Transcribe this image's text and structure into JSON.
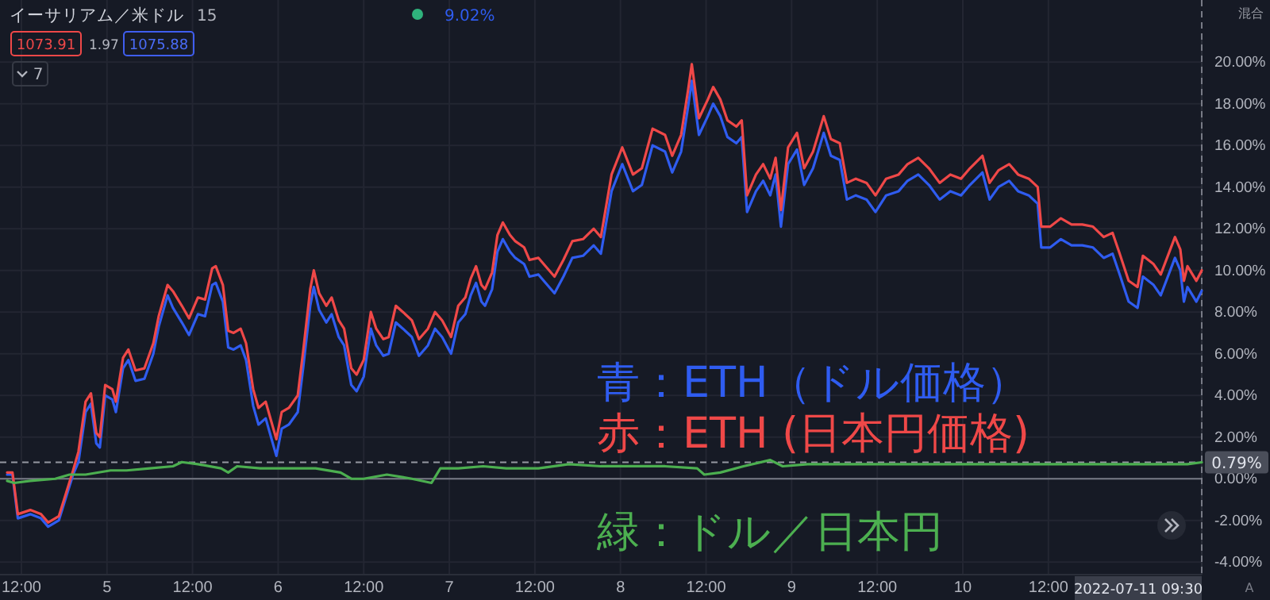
{
  "chart_data": {
    "type": "line",
    "title": "イーサリアム／米ドル",
    "annotations": [
      "15",
      "9.02%",
      "1073.91",
      "1.97",
      "1075.88",
      "7",
      "混合",
      "A"
    ],
    "x": [
      "2022-07-04T10:00",
      "2022-07-04T10:45",
      "2022-07-04T11:30",
      "2022-07-04T13:15",
      "2022-07-04T14:45",
      "2022-07-04T15:45",
      "2022-07-04T17:15",
      "2022-07-04T18:15",
      "2022-07-04T19:15",
      "2022-07-04T20:00",
      "2022-07-04T21:00",
      "2022-07-04T21:45",
      "2022-07-04T22:30",
      "2022-07-04T23:00",
      "2022-07-04T23:45",
      "2022-07-05T00:45",
      "2022-07-05T01:15",
      "2022-07-05T02:15",
      "2022-07-05T03:00",
      "2022-07-05T04:00",
      "2022-07-05T05:15",
      "2022-07-05T06:30",
      "2022-07-05T07:15",
      "2022-07-05T08:30",
      "2022-07-05T09:15",
      "2022-07-05T10:30",
      "2022-07-05T11:30",
      "2022-07-05T12:45",
      "2022-07-05T13:45",
      "2022-07-05T14:45",
      "2022-07-05T15:15",
      "2022-07-05T16:15",
      "2022-07-05T17:00",
      "2022-07-05T17:45",
      "2022-07-05T18:45",
      "2022-07-05T19:30",
      "2022-07-05T20:30",
      "2022-07-05T21:15",
      "2022-07-05T22:15",
      "2022-07-05T23:00",
      "2022-07-05T23:45",
      "2022-07-06T00:30",
      "2022-07-06T01:30",
      "2022-07-06T02:45",
      "2022-07-06T03:30",
      "2022-07-06T04:30",
      "2022-07-06T05:00",
      "2022-07-06T05:45",
      "2022-07-06T06:45",
      "2022-07-06T07:30",
      "2022-07-06T08:30",
      "2022-07-06T09:15",
      "2022-07-06T10:15",
      "2022-07-06T11:00",
      "2022-07-06T12:00",
      "2022-07-06T13:00",
      "2022-07-06T13:45",
      "2022-07-06T14:45",
      "2022-07-06T15:30",
      "2022-07-06T16:30",
      "2022-07-06T17:30",
      "2022-07-06T18:45",
      "2022-07-06T19:45",
      "2022-07-06T21:00",
      "2022-07-06T22:00",
      "2022-07-06T23:00",
      "2022-07-07T00:15",
      "2022-07-07T01:15",
      "2022-07-07T02:15",
      "2022-07-07T03:00",
      "2022-07-07T03:45",
      "2022-07-07T04:30",
      "2022-07-07T05:00",
      "2022-07-07T06:00",
      "2022-07-07T06:45",
      "2022-07-07T07:30",
      "2022-07-07T08:30",
      "2022-07-07T09:15",
      "2022-07-07T10:30",
      "2022-07-07T11:15",
      "2022-07-07T12:30",
      "2022-07-07T13:30",
      "2022-07-07T14:45",
      "2022-07-07T16:00",
      "2022-07-07T17:15",
      "2022-07-07T18:45",
      "2022-07-07T20:15",
      "2022-07-07T21:15",
      "2022-07-07T22:45",
      "2022-07-08T00:15",
      "2022-07-08T01:45",
      "2022-07-08T03:00",
      "2022-07-08T04:30",
      "2022-07-08T06:15",
      "2022-07-08T07:15",
      "2022-07-08T08:30",
      "2022-07-08T09:30",
      "2022-07-08T10:00",
      "2022-07-08T11:00",
      "2022-07-08T12:15",
      "2022-07-08T13:00",
      "2022-07-08T14:00",
      "2022-07-08T15:00",
      "2022-07-08T16:15",
      "2022-07-08T17:00",
      "2022-07-08T17:45",
      "2022-07-08T19:00",
      "2022-07-08T20:00",
      "2022-07-08T21:00",
      "2022-07-08T21:45",
      "2022-07-08T22:30",
      "2022-07-08T23:30",
      "2022-07-09T00:45",
      "2022-07-09T01:45",
      "2022-07-09T03:00",
      "2022-07-09T04:30",
      "2022-07-09T05:30",
      "2022-07-09T06:45",
      "2022-07-09T07:45",
      "2022-07-09T09:00",
      "2022-07-09T10:30",
      "2022-07-09T11:45",
      "2022-07-09T13:15",
      "2022-07-09T15:00",
      "2022-07-09T16:15",
      "2022-07-09T17:45",
      "2022-07-09T19:15",
      "2022-07-09T20:45",
      "2022-07-09T22:15",
      "2022-07-09T23:45",
      "2022-07-10T01:00",
      "2022-07-10T02:45",
      "2022-07-10T03:45",
      "2022-07-10T05:00",
      "2022-07-10T06:30",
      "2022-07-10T07:45",
      "2022-07-10T09:15",
      "2022-07-10T10:30",
      "2022-07-10T11:00",
      "2022-07-10T12:15",
      "2022-07-10T13:45",
      "2022-07-10T15:15",
      "2022-07-10T16:45",
      "2022-07-10T18:15",
      "2022-07-10T19:45",
      "2022-07-10T21:00",
      "2022-07-10T22:00",
      "2022-07-10T23:15",
      "2022-07-11T00:30",
      "2022-07-11T01:15",
      "2022-07-11T02:45",
      "2022-07-11T03:45",
      "2022-07-11T05:45",
      "2022-07-11T06:30",
      "2022-07-11T07:00",
      "2022-07-11T07:30",
      "2022-07-11T08:45",
      "2022-07-11T09:30"
    ],
    "series": [
      {
        "name": "青：ETH（ドル価格）",
        "color": "#2f5cf0",
        "values": [
          0.2,
          0.2,
          -1.9,
          -1.7,
          -1.9,
          -2.3,
          -2.0,
          -0.9,
          0.2,
          0.8,
          3.2,
          3.6,
          1.7,
          1.5,
          4.0,
          3.8,
          3.2,
          5.3,
          5.7,
          4.7,
          4.8,
          6.0,
          7.3,
          8.8,
          8.2,
          7.5,
          6.9,
          7.9,
          7.8,
          9.3,
          9.4,
          8.5,
          6.3,
          6.2,
          6.4,
          5.7,
          3.5,
          2.6,
          2.9,
          2.0,
          1.1,
          2.4,
          2.6,
          3.2,
          5.3,
          8.3,
          9.2,
          8.1,
          7.5,
          7.9,
          6.8,
          6.4,
          4.5,
          4.2,
          4.9,
          7.2,
          6.4,
          5.9,
          6.0,
          7.5,
          7.2,
          6.8,
          5.9,
          6.4,
          7.2,
          6.8,
          6.0,
          7.5,
          7.9,
          8.8,
          9.4,
          8.5,
          8.3,
          9.1,
          10.9,
          11.5,
          10.9,
          10.6,
          10.3,
          9.7,
          9.8,
          9.4,
          8.9,
          9.7,
          10.6,
          10.7,
          11.2,
          10.8,
          13.8,
          15.1,
          13.8,
          14.1,
          16.0,
          15.7,
          14.7,
          15.7,
          17.9,
          19.1,
          16.5,
          17.4,
          18.0,
          17.4,
          16.4,
          16.1,
          16.4,
          12.8,
          13.8,
          14.3,
          13.6,
          14.6,
          12.1,
          15.1,
          15.8,
          14.1,
          14.9,
          16.6,
          15.5,
          15.3,
          13.4,
          13.6,
          13.4,
          12.8,
          13.6,
          13.8,
          14.3,
          14.6,
          14.1,
          13.4,
          13.8,
          13.6,
          14.1,
          14.7,
          13.4,
          14.0,
          14.3,
          13.8,
          13.6,
          13.2,
          11.1,
          11.1,
          11.5,
          11.2,
          11.2,
          11.1,
          10.6,
          10.8,
          9.8,
          8.5,
          8.2,
          9.7,
          9.3,
          8.8,
          10.6,
          10.0,
          8.5,
          9.2,
          8.5,
          9.02
        ]
      },
      {
        "name": "赤：ETH (日本円価格)",
        "color": "#ef4848",
        "values": [
          0.3,
          0.3,
          -1.7,
          -1.5,
          -1.7,
          -2.1,
          -1.8,
          -0.7,
          0.4,
          1.3,
          3.7,
          4.1,
          2.2,
          2.0,
          4.5,
          4.3,
          3.7,
          5.8,
          6.2,
          5.2,
          5.3,
          6.5,
          7.8,
          9.3,
          9.0,
          8.3,
          7.7,
          8.7,
          8.6,
          10.1,
          10.2,
          9.3,
          7.1,
          7.0,
          7.2,
          6.5,
          4.3,
          3.4,
          3.7,
          2.8,
          1.9,
          3.2,
          3.4,
          4.0,
          6.1,
          9.1,
          10.0,
          8.9,
          8.3,
          8.7,
          7.6,
          7.2,
          5.3,
          5.0,
          5.7,
          8.0,
          7.2,
          6.7,
          6.8,
          8.3,
          8.0,
          7.6,
          6.7,
          7.2,
          8.0,
          7.6,
          6.8,
          8.3,
          8.7,
          9.6,
          10.2,
          9.3,
          9.1,
          9.9,
          11.7,
          12.3,
          11.7,
          11.4,
          11.1,
          10.5,
          10.6,
          10.2,
          9.7,
          10.5,
          11.4,
          11.5,
          12.0,
          11.6,
          14.6,
          15.9,
          14.6,
          14.9,
          16.8,
          16.5,
          15.5,
          16.5,
          18.7,
          19.9,
          17.3,
          18.2,
          18.8,
          18.2,
          17.2,
          16.9,
          17.2,
          13.6,
          14.6,
          15.1,
          14.4,
          15.4,
          12.9,
          15.9,
          16.6,
          14.9,
          15.7,
          17.4,
          16.3,
          16.1,
          14.2,
          14.4,
          14.2,
          13.6,
          14.4,
          14.6,
          15.1,
          15.4,
          14.9,
          14.2,
          14.6,
          14.4,
          14.9,
          15.5,
          14.2,
          14.8,
          15.1,
          14.6,
          14.4,
          14.0,
          12.1,
          12.1,
          12.5,
          12.2,
          12.2,
          12.1,
          11.6,
          11.8,
          10.8,
          9.5,
          9.2,
          10.7,
          10.3,
          9.8,
          11.6,
          11.0,
          9.5,
          10.2,
          9.5,
          10.0
        ]
      },
      {
        "name": "緑：ドル／日本円",
        "color": "#4caf50",
        "x": [
          "2022-07-04T10:00",
          "2022-07-04T11:00",
          "2022-07-04T13:15",
          "2022-07-04T16:45",
          "2022-07-04T18:45",
          "2022-07-04T21:00",
          "2022-07-05T00:30",
          "2022-07-05T02:45",
          "2022-07-05T06:00",
          "2022-07-05T09:15",
          "2022-07-05T10:30",
          "2022-07-05T12:45",
          "2022-07-05T16:00",
          "2022-07-05T17:00",
          "2022-07-05T18:15",
          "2022-07-05T21:30",
          "2022-07-06T00:45",
          "2022-07-06T05:15",
          "2022-07-06T08:45",
          "2022-07-06T10:15",
          "2022-07-06T12:00",
          "2022-07-06T15:15",
          "2022-07-06T18:45",
          "2022-07-06T21:30",
          "2022-07-06T22:45",
          "2022-07-07T01:15",
          "2022-07-07T04:45",
          "2022-07-07T08:00",
          "2022-07-07T12:30",
          "2022-07-07T16:45",
          "2022-07-07T21:15",
          "2022-07-08T01:45",
          "2022-07-08T06:15",
          "2022-07-08T10:45",
          "2022-07-08T11:45",
          "2022-07-08T14:00",
          "2022-07-08T17:15",
          "2022-07-08T21:00",
          "2022-07-08T22:45",
          "2022-07-09T02:15",
          "2022-07-09T11:15",
          "2022-07-09T22:15",
          "2022-07-10T09:15",
          "2022-07-10T20:30",
          "2022-07-11T07:30",
          "2022-07-11T09:30"
        ],
        "values": [
          -0.1,
          -0.2,
          -0.1,
          0.0,
          0.2,
          0.2,
          0.4,
          0.4,
          0.5,
          0.6,
          0.8,
          0.7,
          0.5,
          0.3,
          0.6,
          0.5,
          0.5,
          0.5,
          0.3,
          0.0,
          0.0,
          0.2,
          0.0,
          -0.2,
          0.5,
          0.5,
          0.6,
          0.5,
          0.5,
          0.7,
          0.6,
          0.6,
          0.6,
          0.5,
          0.2,
          0.3,
          0.6,
          0.9,
          0.6,
          0.7,
          0.7,
          0.7,
          0.7,
          0.7,
          0.7,
          0.79
        ]
      }
    ],
    "xlim": [
      "2022-07-04T09:00",
      "2022-07-11T09:30"
    ],
    "xticks": [
      {
        "value": "2022-07-04T12:00",
        "label": "12:00"
      },
      {
        "value": "2022-07-05",
        "label": "5"
      },
      {
        "value": "2022-07-05T12:00",
        "label": "12:00"
      },
      {
        "value": "2022-07-06",
        "label": "6"
      },
      {
        "value": "2022-07-06T12:00",
        "label": "12:00"
      },
      {
        "value": "2022-07-07",
        "label": "7"
      },
      {
        "value": "2022-07-07T12:00",
        "label": "12:00"
      },
      {
        "value": "2022-07-08",
        "label": "8"
      },
      {
        "value": "2022-07-08T12:00",
        "label": "12:00"
      },
      {
        "value": "2022-07-09",
        "label": "9"
      },
      {
        "value": "2022-07-09T12:00",
        "label": "12:00"
      },
      {
        "value": "2022-07-10",
        "label": "10"
      },
      {
        "value": "2022-07-10T12:00",
        "label": "12:00"
      }
    ],
    "ylim": [
      -4.6,
      21.3
    ],
    "yticks": [
      {
        "value": 20,
        "label": "20.00%"
      },
      {
        "value": 18,
        "label": "18.00%"
      },
      {
        "value": 16,
        "label": "16.00%"
      },
      {
        "value": 14,
        "label": "14.00%"
      },
      {
        "value": 12,
        "label": "12.00%"
      },
      {
        "value": 10,
        "label": "10.00%"
      },
      {
        "value": 8,
        "label": "8.00%"
      },
      {
        "value": 6,
        "label": "6.00%"
      },
      {
        "value": 4,
        "label": "4.00%"
      },
      {
        "value": 2,
        "label": "2.00%"
      },
      {
        "value": 0,
        "label": "0.00%"
      },
      {
        "value": -2,
        "label": "-2.00%"
      },
      {
        "value": -4,
        "label": "-4.00%"
      }
    ],
    "grid": true,
    "legend": "bottom right",
    "ref_lines": [
      {
        "axis": "y",
        "value": 0,
        "color": "#787b86",
        "line_style": "solid"
      },
      {
        "axis": "y",
        "value": 0.79,
        "label": "0.79%",
        "color": "#9598a1",
        "line_style": "dashed"
      },
      {
        "axis": "x",
        "value": "2022-07-11T09:30",
        "label": "2022-07-11 09:30",
        "color": "#787b86",
        "line_style": "dashed"
      }
    ]
  }
}
